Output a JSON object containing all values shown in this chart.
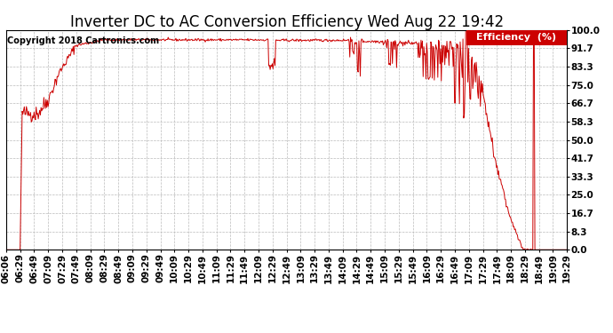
{
  "title": "Inverter DC to AC Conversion Efficiency Wed Aug 22 19:42",
  "copyright": "Copyright 2018 Cartronics.com",
  "legend_label": "Efficiency  (%)",
  "legend_bg": "#cc0000",
  "legend_text_color": "#ffffff",
  "line_color": "#cc0000",
  "background_color": "#ffffff",
  "grid_color": "#bbbbbb",
  "ylim": [
    0.0,
    100.0
  ],
  "yticks": [
    0.0,
    8.3,
    16.7,
    25.0,
    33.3,
    41.7,
    50.0,
    58.3,
    66.7,
    75.0,
    83.3,
    91.7,
    100.0
  ],
  "xtick_labels": [
    "06:06",
    "06:29",
    "06:49",
    "07:09",
    "07:29",
    "07:49",
    "08:09",
    "08:29",
    "08:49",
    "09:09",
    "09:29",
    "09:49",
    "10:09",
    "10:29",
    "10:49",
    "11:09",
    "11:29",
    "11:49",
    "12:09",
    "12:29",
    "12:49",
    "13:09",
    "13:29",
    "13:49",
    "14:09",
    "14:29",
    "14:49",
    "15:09",
    "15:29",
    "15:49",
    "16:09",
    "16:29",
    "16:49",
    "17:09",
    "17:29",
    "17:49",
    "18:09",
    "18:29",
    "18:49",
    "19:09",
    "19:29"
  ],
  "title_fontsize": 12,
  "copyright_fontsize": 7,
  "axis_fontsize": 7.5,
  "legend_fontsize": 8
}
